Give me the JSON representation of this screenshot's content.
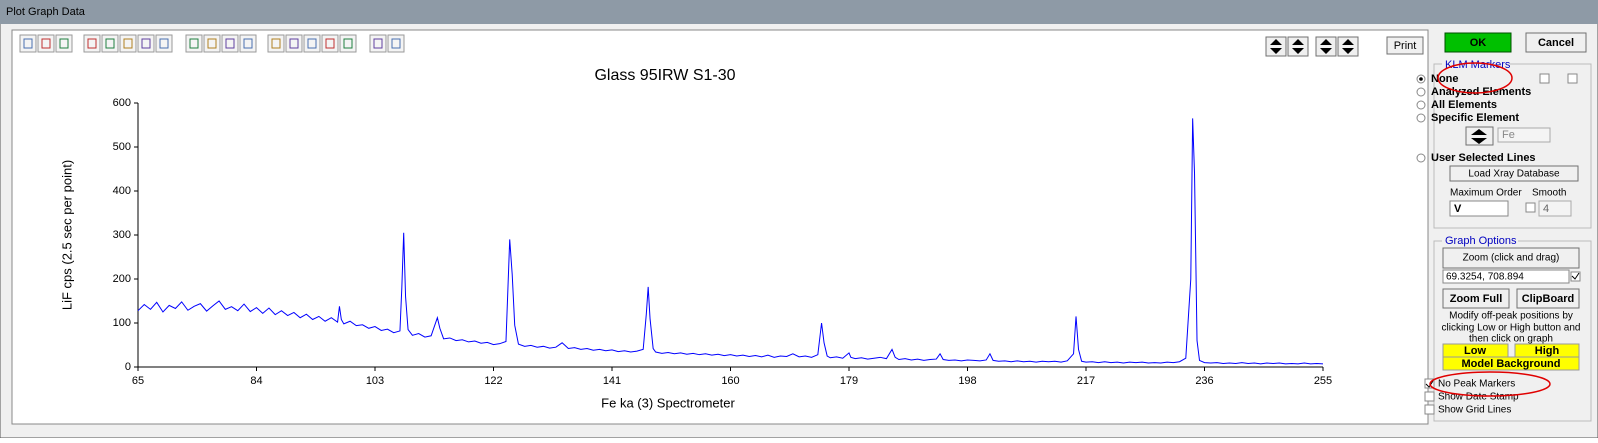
{
  "window": {
    "title": "Plot Graph Data"
  },
  "toolbar": {
    "print": "Print"
  },
  "chart_data": {
    "type": "line",
    "title": "Glass 95IRW S1-30",
    "x_label": "Fe ka (3) Spectrometer",
    "y_label": "LiF cps (2.5 sec per point)",
    "xlim": [
      65,
      255
    ],
    "xticks": [
      65,
      84,
      103,
      122,
      141,
      160,
      179,
      198,
      217,
      236,
      255
    ],
    "ylim": [
      0,
      600
    ],
    "yticks": [
      0,
      100,
      200,
      300,
      400,
      500,
      600
    ],
    "grid": false,
    "x": [
      65,
      66,
      67,
      68,
      69,
      70,
      71,
      72,
      73,
      74,
      75,
      76,
      77,
      78,
      79,
      80,
      81,
      82,
      83,
      84,
      85,
      86,
      87,
      88,
      89,
      90,
      91,
      92,
      93,
      94,
      95,
      96,
      97,
      97.3,
      97.6,
      98,
      99,
      100,
      101,
      102,
      103,
      104,
      105,
      106,
      107,
      107.3,
      107.6,
      107.9,
      108.3,
      109,
      110,
      111,
      112,
      113,
      113.4,
      114,
      115,
      116,
      117,
      118,
      119,
      120,
      121,
      122,
      123,
      124,
      124.6,
      125,
      125.4,
      126,
      127,
      128,
      129,
      130,
      131,
      132,
      133,
      133.4,
      134,
      135,
      136,
      137,
      138,
      139,
      140,
      141,
      142,
      143,
      144,
      145,
      146,
      146.5,
      146.8,
      147.1,
      147.6,
      148,
      149,
      150,
      151,
      152,
      153,
      154,
      155,
      156,
      157,
      158,
      159,
      160,
      161,
      162,
      163,
      164,
      165,
      166,
      167,
      168,
      169,
      170,
      171,
      172,
      173,
      174,
      174.6,
      175,
      175.5,
      176,
      177,
      178,
      179,
      179.3,
      180,
      181,
      182,
      183,
      184,
      185,
      185.9,
      186.4,
      187,
      188,
      189,
      190,
      191,
      192,
      193,
      193.6,
      194.1,
      195,
      196,
      197,
      198,
      199,
      200,
      201,
      201.6,
      202.1,
      203,
      204,
      205,
      206,
      207,
      208,
      209,
      210,
      211,
      212,
      213,
      214,
      215,
      215.4,
      215.8,
      216.3,
      217,
      218,
      219,
      220,
      221,
      222,
      223,
      224,
      225,
      226,
      227,
      228,
      229,
      230,
      231,
      232,
      233,
      233.8,
      234.1,
      234.4,
      234.8,
      235.2,
      236,
      237,
      238,
      239,
      240,
      241,
      242,
      243,
      244,
      245,
      246,
      247,
      248,
      249,
      250,
      251,
      252,
      253,
      254,
      255
    ],
    "series": [
      {
        "color": "#0000ff",
        "values": [
          128,
          142,
          131,
          147,
          125,
          140,
          133,
          148,
          129,
          138,
          144,
          127,
          139,
          150,
          131,
          137,
          128,
          143,
          126,
          135,
          122,
          134,
          119,
          128,
          117,
          124,
          112,
          120,
          108,
          115,
          104,
          112,
          102,
          138,
          108,
          98,
          104,
          94,
          96,
          88,
          92,
          83,
          86,
          78,
          82,
          180,
          305,
          160,
          85,
          72,
          76,
          68,
          71,
          112,
          88,
          64,
          66,
          60,
          62,
          57,
          59,
          54,
          56,
          51,
          53,
          58,
          290,
          210,
          95,
          52,
          47,
          49,
          45,
          47,
          43,
          45,
          55,
          50,
          42,
          44,
          40,
          42,
          38,
          40,
          37,
          39,
          35,
          37,
          34,
          36,
          40,
          120,
          182,
          110,
          42,
          34,
          31,
          33,
          30,
          32,
          29,
          31,
          28,
          30,
          27,
          29,
          26,
          28,
          25,
          27,
          24,
          26,
          23,
          27,
          22,
          25,
          24,
          30,
          23,
          25,
          22,
          28,
          100,
          55,
          25,
          21,
          23,
          20,
          32,
          22,
          19,
          21,
          18,
          20,
          22,
          19,
          40,
          22,
          17,
          19,
          16,
          18,
          15,
          17,
          18,
          30,
          17,
          15,
          16,
          14,
          16,
          15,
          14,
          16,
          30,
          15,
          13,
          14,
          12,
          14,
          12,
          13,
          11,
          13,
          12,
          13,
          11,
          14,
          30,
          115,
          40,
          13,
          11,
          12,
          10,
          12,
          10,
          11,
          9,
          11,
          10,
          11,
          9,
          10,
          9,
          11,
          10,
          12,
          20,
          200,
          565,
          440,
          60,
          15,
          10,
          9,
          10,
          8,
          9,
          8,
          10,
          8,
          9,
          7,
          9,
          8,
          9,
          7,
          8,
          7,
          9,
          7,
          8,
          7
        ]
      }
    ]
  },
  "panel": {
    "ok": "OK",
    "cancel": "Cancel",
    "klm_markers": {
      "title": "KLM Markers",
      "options": [
        "None",
        "Analyzed Elements",
        "All Elements",
        "Specific Element",
        "User Selected Lines"
      ],
      "element": "Fe",
      "load_button": "Load Xray Database",
      "max_order_label": "Maximum Order",
      "max_order_value": "V",
      "smooth_label": "Smooth",
      "smooth_value": "4"
    },
    "graph_options": {
      "title": "Graph Options",
      "zoom": "Zoom (click and drag)",
      "coords": "69.3254,  708.894",
      "zoom_full": "Zoom Full",
      "clipboard": "ClipBoard",
      "note": [
        "Modify off-peak positions by",
        "clicking Low or High button and",
        "then click on graph"
      ],
      "low": "Low",
      "high": "High",
      "model_background": "Model  Background",
      "checkboxes": [
        "No Peak Markers",
        "Show Date Stamp",
        "Show Grid Lines"
      ]
    }
  }
}
